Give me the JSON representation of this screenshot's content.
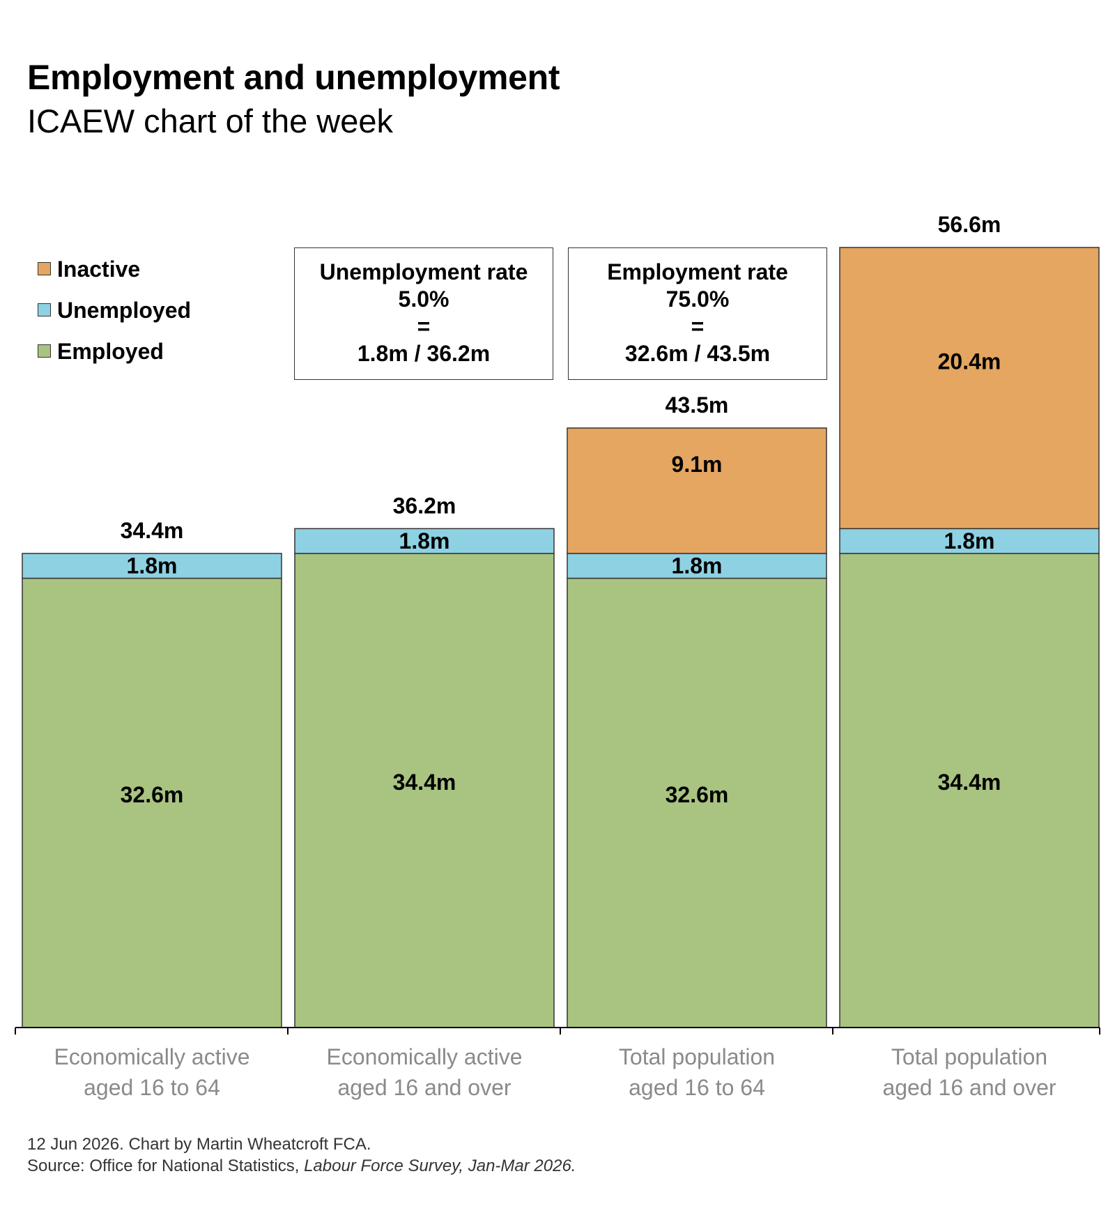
{
  "header": {
    "title": "Employment and unemployment",
    "subtitle": "ICAEW chart of the week"
  },
  "legend": [
    {
      "name": "Inactive",
      "color": "#E4A661"
    },
    {
      "name": "Unemployed",
      "color": "#8ED1E3"
    },
    {
      "name": "Employed",
      "color": "#A9C381"
    }
  ],
  "annotations": {
    "unemployment": {
      "title": "Unemployment rate",
      "value": "5.0%",
      "equals": "=",
      "formula": "1.8m / 36.2m"
    },
    "employment": {
      "title": "Employment rate",
      "value": "75.0%",
      "equals": "=",
      "formula": "32.6m / 43.5m"
    }
  },
  "chart_data": {
    "type": "bar",
    "stacked": true,
    "categories": [
      [
        "Economically active",
        "aged 16 to 64"
      ],
      [
        "Economically active",
        "aged 16 and over"
      ],
      [
        "Total population",
        "aged 16 to 64"
      ],
      [
        "Total population",
        "aged 16 and over"
      ]
    ],
    "series": [
      {
        "name": "Employed",
        "color": "#A9C381",
        "values": [
          32.6,
          34.4,
          32.6,
          34.4
        ],
        "labels": [
          "32.6m",
          "34.4m",
          "32.6m",
          "34.4m"
        ]
      },
      {
        "name": "Unemployed",
        "color": "#8ED1E3",
        "values": [
          1.8,
          1.8,
          1.8,
          1.8
        ],
        "labels": [
          "1.8m",
          "1.8m",
          "1.8m",
          "1.8m"
        ]
      },
      {
        "name": "Inactive",
        "color": "#E4A661",
        "values": [
          0,
          0,
          9.1,
          20.4
        ],
        "labels": [
          "",
          "",
          "9.1m",
          "20.4m"
        ]
      }
    ],
    "totals": [
      "34.4m",
      "36.2m",
      "43.5m",
      "56.6m"
    ],
    "ylim": [
      0,
      56.6
    ],
    "grid": false,
    "legend_position": "top-left"
  },
  "footer": {
    "line1": "12 Jun 2026.   Chart by Martin Wheatcroft FCA.",
    "source_prefix": "Source: Office for National Statistics, ",
    "source_italic": "Labour Force Survey, Jan-Mar 2026."
  }
}
